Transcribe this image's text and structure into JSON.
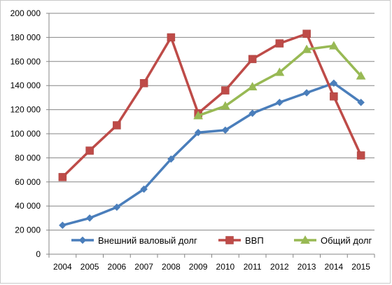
{
  "chart_data": {
    "type": "line",
    "title": "",
    "xlabel": "",
    "ylabel": "",
    "categories": [
      "2004",
      "2005",
      "2006",
      "2007",
      "2008",
      "2009",
      "2010",
      "2011",
      "2012",
      "2013",
      "2014",
      "2015"
    ],
    "ylim": [
      0,
      200000
    ],
    "y_ticks": [
      "0",
      "20 000",
      "40 000",
      "60 000",
      "80 000",
      "100 000",
      "120 000",
      "140 000",
      "160 000",
      "180 000",
      "200 000"
    ],
    "grid": true,
    "legend_position": "bottom-inside",
    "series": [
      {
        "name": "Внешний валовый долг",
        "color": "#4a7ebb",
        "marker": "diamond",
        "values": [
          24000,
          30000,
          39000,
          54000,
          79000,
          101000,
          103000,
          117000,
          126000,
          134000,
          142000,
          126000
        ]
      },
      {
        "name": "ВВП",
        "color": "#be4b48",
        "marker": "square",
        "values": [
          64000,
          86000,
          107000,
          142000,
          180000,
          117000,
          136000,
          162000,
          175000,
          183000,
          131000,
          82000
        ]
      },
      {
        "name": "Общий долг",
        "color": "#98b954",
        "marker": "triangle",
        "values": [
          null,
          null,
          null,
          null,
          null,
          115000,
          123000,
          139000,
          151000,
          170000,
          173000,
          148000
        ]
      }
    ]
  }
}
